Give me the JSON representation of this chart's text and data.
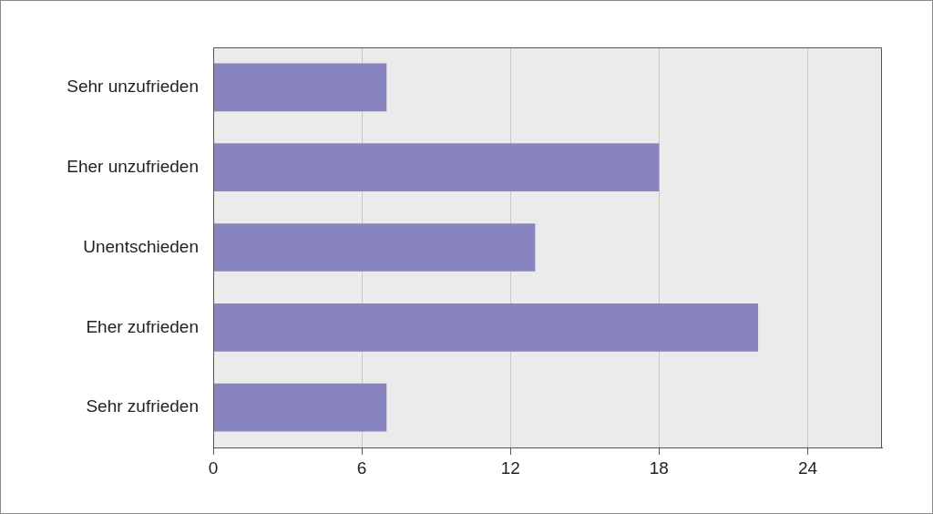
{
  "chart_data": {
    "type": "bar",
    "orientation": "horizontal",
    "categories": [
      "Sehr unzufrieden",
      "Eher unzufrieden",
      "Unentschieden",
      "Eher zufrieden",
      "Sehr zufrieden"
    ],
    "values": [
      7,
      18,
      13,
      22,
      7
    ],
    "color": "#8884bf",
    "xlim": [
      0,
      27
    ],
    "xticks": [
      0,
      6,
      12,
      18,
      24
    ],
    "grid": "x"
  }
}
